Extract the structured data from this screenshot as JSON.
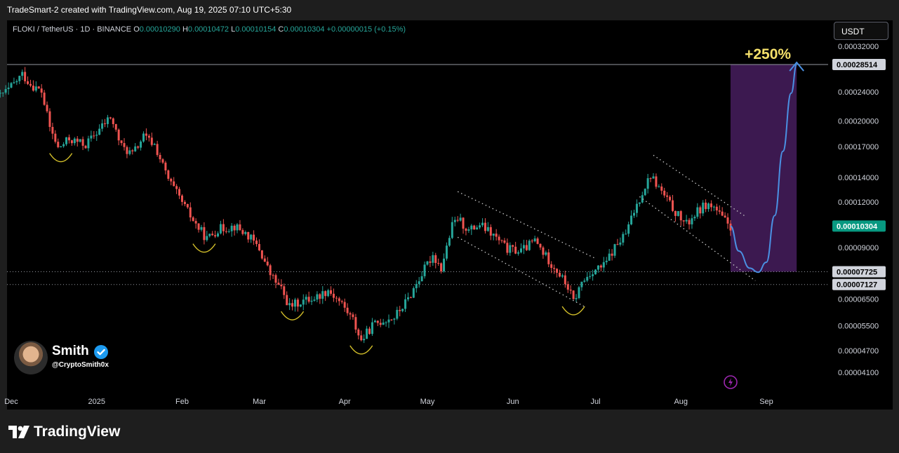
{
  "header": {
    "credit": "TradeSmart-2 created with TradingView.com, Aug 19, 2025 07:10 UTC+5:30"
  },
  "symbol": {
    "name": "FLOKI / TetherUS · 1D · BINANCE",
    "open_label": "O",
    "open": "0.00010290",
    "high_label": "H",
    "high": "0.00010472",
    "low_label": "L",
    "low": "0.00010154",
    "close_label": "C",
    "close": "0.00010304",
    "change": "+0.00000015 (+0.15%)"
  },
  "currency": "USDT",
  "annotation": {
    "target_text": "+250%"
  },
  "signature": {
    "name": "Smith",
    "handle": "@CryptoSmith0x"
  },
  "footer": {
    "brand": "TradingView"
  },
  "colors": {
    "up": "#26a69a",
    "down": "#ef5350",
    "forecast": "#4a90e2",
    "target_zone": "#3c1950",
    "annotation": "#f5e06a",
    "arc": "#d4c02a"
  },
  "chart_data": {
    "type": "candlestick",
    "title": "FLOKI / TetherUS · 1D · BINANCE",
    "scale": "log",
    "x_axis_labels": [
      "Dec",
      "2025",
      "Feb",
      "Mar",
      "Apr",
      "May",
      "Jun",
      "Jul",
      "Aug",
      "Sep"
    ],
    "y_ticks": [
      "0.00032000",
      "0.00024000",
      "0.00020000",
      "0.00017000",
      "0.00014000",
      "0.00012000",
      "0.00009000",
      "0.00006500",
      "0.00005500",
      "0.00004700",
      "0.00004100"
    ],
    "y_range": [
      3.7e-05,
      0.00034
    ],
    "badges": [
      {
        "value": 0.00028514,
        "label": "0.00028514",
        "style": "gray"
      },
      {
        "value": 0.00010304,
        "label": "0.00010304",
        "style": "green"
      },
      {
        "value": 7.725e-05,
        "label": "0.00007725",
        "style": "gray"
      },
      {
        "value": 7.127e-05,
        "label": "0.00007127",
        "style": "gray"
      }
    ],
    "horizontal_levels": [
      0.00028514,
      7.725e-05,
      7.127e-05
    ],
    "target_zone": {
      "from_date": "2025-08-19",
      "to_date": "2025-09-12",
      "low": 7.725e-05,
      "high": 0.00028514,
      "label": "+250%"
    },
    "price_path": [
      [
        "2024-11-26",
        0.000232
      ],
      [
        "2024-11-30",
        0.000243
      ],
      [
        "2024-12-05",
        0.000268
      ],
      [
        "2024-12-08",
        0.000252
      ],
      [
        "2024-12-12",
        0.00024
      ],
      [
        "2024-12-15",
        0.000192
      ],
      [
        "2024-12-18",
        0.000168
      ],
      [
        "2024-12-22",
        0.000178
      ],
      [
        "2024-12-28",
        0.000172
      ],
      [
        "2025-01-01",
        0.000186
      ],
      [
        "2025-01-06",
        0.000205
      ],
      [
        "2025-01-10",
        0.00017
      ],
      [
        "2025-01-14",
        0.000162
      ],
      [
        "2025-01-18",
        0.000181
      ],
      [
        "2025-01-22",
        0.000172
      ],
      [
        "2025-01-27",
        0.000138
      ],
      [
        "2025-02-02",
        0.000116
      ],
      [
        "2025-02-06",
        0.000104
      ],
      [
        "2025-02-10",
        9.5e-05
      ],
      [
        "2025-02-14",
        0.000101
      ],
      [
        "2025-02-20",
        0.000103
      ],
      [
        "2025-02-25",
        9.7e-05
      ],
      [
        "2025-03-01",
        8.9e-05
      ],
      [
        "2025-03-05",
        7.6e-05
      ],
      [
        "2025-03-09",
        6.9e-05
      ],
      [
        "2025-03-12",
        6.2e-05
      ],
      [
        "2025-03-16",
        6.4e-05
      ],
      [
        "2025-03-22",
        6.6e-05
      ],
      [
        "2025-03-26",
        6.9e-05
      ],
      [
        "2025-03-31",
        6.3e-05
      ],
      [
        "2025-04-04",
        5.7e-05
      ],
      [
        "2025-04-07",
        5e-05
      ],
      [
        "2025-04-11",
        5.5e-05
      ],
      [
        "2025-04-15",
        5.7e-05
      ],
      [
        "2025-04-19",
        5.8e-05
      ],
      [
        "2025-04-24",
        6.5e-05
      ],
      [
        "2025-04-28",
        7.4e-05
      ],
      [
        "2025-05-03",
        8.6e-05
      ],
      [
        "2025-05-06",
        7.9e-05
      ],
      [
        "2025-05-10",
        0.000103
      ],
      [
        "2025-05-12",
        0.000108
      ],
      [
        "2025-05-16",
        0.0001
      ],
      [
        "2025-05-20",
        0.000104
      ],
      [
        "2025-05-25",
        9.7e-05
      ],
      [
        "2025-05-30",
        8.9e-05
      ],
      [
        "2025-06-04",
        8.8e-05
      ],
      [
        "2025-06-09",
        9.4e-05
      ],
      [
        "2025-06-13",
        8.5e-05
      ],
      [
        "2025-06-17",
        7.8e-05
      ],
      [
        "2025-06-21",
        7e-05
      ],
      [
        "2025-06-23",
        6.4e-05
      ],
      [
        "2025-06-26",
        7.2e-05
      ],
      [
        "2025-06-30",
        7.8e-05
      ],
      [
        "2025-07-04",
        8e-05
      ],
      [
        "2025-07-08",
        9e-05
      ],
      [
        "2025-07-12",
        9.8e-05
      ],
      [
        "2025-07-15",
        0.000113
      ],
      [
        "2025-07-18",
        0.000128
      ],
      [
        "2025-07-21",
        0.000142
      ],
      [
        "2025-07-24",
        0.000131
      ],
      [
        "2025-07-28",
        0.000118
      ],
      [
        "2025-07-31",
        0.00011
      ],
      [
        "2025-08-03",
        0.000104
      ],
      [
        "2025-08-06",
        0.000111
      ],
      [
        "2025-08-10",
        0.000118
      ],
      [
        "2025-08-13",
        0.000116
      ],
      [
        "2025-08-16",
        0.000108
      ],
      [
        "2025-08-19",
        0.000103
      ]
    ],
    "forecast_path": [
      [
        "2025-08-19",
        0.000103
      ],
      [
        "2025-08-22",
        8.8e-05
      ],
      [
        "2025-08-26",
        7.9e-05
      ],
      [
        "2025-08-29",
        7.7e-05
      ],
      [
        "2025-09-01",
        8.2e-05
      ],
      [
        "2025-09-04",
        0.00011
      ],
      [
        "2025-09-07",
        0.000165
      ],
      [
        "2025-09-10",
        0.000238
      ],
      [
        "2025-09-12",
        0.000285
      ]
    ],
    "channels": [
      {
        "upper": [
          [
            "2025-05-12",
            0.000128
          ],
          [
            "2025-07-01",
            8.4e-05
          ]
        ],
        "lower": [
          [
            "2025-05-12",
            9.6e-05
          ],
          [
            "2025-06-27",
            6.2e-05
          ]
        ]
      },
      {
        "upper": [
          [
            "2025-07-22",
            0.000161
          ],
          [
            "2025-08-24",
            0.00011
          ]
        ],
        "lower": [
          [
            "2025-07-17",
            0.000124
          ],
          [
            "2025-08-28",
            7.3e-05
          ]
        ]
      }
    ],
    "rounded_bottoms": [
      "2024-12-19",
      "2025-02-09",
      "2025-03-13",
      "2025-04-07",
      "2025-06-23"
    ]
  }
}
